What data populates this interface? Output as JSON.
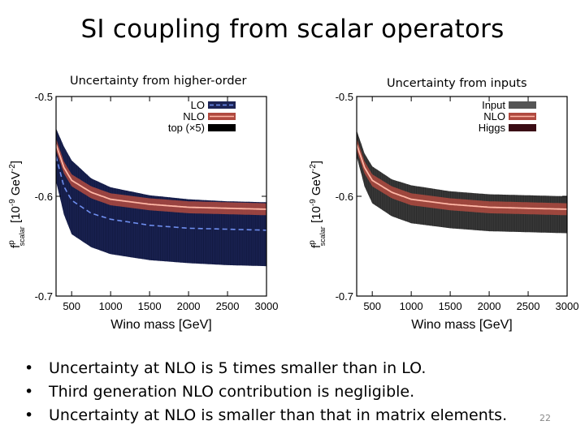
{
  "title": "SI coupling from scalar operators",
  "subtitles": {
    "left": "Uncertainty from higher-order",
    "right": "Uncertainty from inputs"
  },
  "bullets": [
    "Uncertainty at NLO is  5 times smaller than in LO.",
    "Third generation NLO contribution is negligible.",
    "Uncertainty at NLO is smaller than that in matrix elements."
  ],
  "page_number": "22",
  "colors": {
    "navy_band": "#1c2354",
    "lo_line": "#6f8ff0",
    "grey_band": "#3c3c3c",
    "nlo_band": "#b04a40",
    "nlo_line": "#ffb7a6",
    "higgs": "#3a0c14",
    "top": "#000000"
  },
  "chart_data": [
    {
      "type": "area",
      "title": "Uncertainty from higher-order",
      "xlabel": "Wino mass [GeV]",
      "ylabel_main": "f",
      "ylabel_super": "p",
      "ylabel_sub": "scalar",
      "ylabel_units": "[10",
      "ylabel_units_exp": "-9",
      "ylabel_units_tail": " GeV",
      "ylabel_units_exp2": "-2",
      "ylabel_units_close": "]",
      "xlim": [
        300,
        3000
      ],
      "ylim": [
        -0.7,
        -0.5
      ],
      "xticks": [
        500,
        1000,
        1500,
        2000,
        2500,
        3000
      ],
      "yticks": [
        -0.5,
        -0.6,
        -0.7
      ],
      "ytick_labels": [
        "-0.5",
        "-0.6",
        "-0.7"
      ],
      "legend": [
        {
          "label": "LO",
          "style": "lo"
        },
        {
          "label": "NLO",
          "style": "nlo"
        },
        {
          "label": "top (×5)",
          "style": "top"
        }
      ],
      "series": [
        {
          "name": "LO band",
          "x": [
            300,
            400,
            500,
            750,
            1000,
            1500,
            2000,
            2500,
            3000
          ],
          "lower": [
            -0.585,
            -0.618,
            -0.638,
            -0.651,
            -0.658,
            -0.664,
            -0.667,
            -0.669,
            -0.67
          ],
          "upper": [
            -0.532,
            -0.55,
            -0.564,
            -0.582,
            -0.591,
            -0.599,
            -0.603,
            -0.605,
            -0.606
          ]
        },
        {
          "name": "LO central",
          "x": [
            300,
            400,
            500,
            750,
            1000,
            1500,
            2000,
            2500,
            3000
          ],
          "y": [
            -0.56,
            -0.59,
            -0.604,
            -0.617,
            -0.623,
            -0.629,
            -0.632,
            -0.633,
            -0.634
          ]
        },
        {
          "name": "NLO band",
          "x": [
            300,
            400,
            500,
            750,
            1000,
            1500,
            2000,
            2500,
            3000
          ],
          "lower": [
            -0.554,
            -0.577,
            -0.59,
            -0.602,
            -0.609,
            -0.614,
            -0.617,
            -0.618,
            -0.619
          ],
          "upper": [
            -0.542,
            -0.565,
            -0.578,
            -0.59,
            -0.597,
            -0.602,
            -0.605,
            -0.606,
            -0.607
          ]
        },
        {
          "name": "NLO central",
          "x": [
            300,
            400,
            500,
            750,
            1000,
            1500,
            2000,
            2500,
            3000
          ],
          "y": [
            -0.548,
            -0.571,
            -0.584,
            -0.596,
            -0.603,
            -0.608,
            -0.611,
            -0.612,
            -0.613
          ]
        }
      ]
    },
    {
      "type": "area",
      "title": "Uncertainty from inputs",
      "xlabel": "Wino mass [GeV]",
      "ylabel_main": "f",
      "ylabel_super": "p",
      "ylabel_sub": "scalar",
      "ylabel_units": "[10",
      "ylabel_units_exp": "-9",
      "ylabel_units_tail": " GeV",
      "ylabel_units_exp2": "-2",
      "ylabel_units_close": "]",
      "xlim": [
        300,
        3000
      ],
      "ylim": [
        -0.7,
        -0.5
      ],
      "xticks": [
        500,
        1000,
        1500,
        2000,
        2500,
        3000
      ],
      "yticks": [
        -0.5,
        -0.6,
        -0.7
      ],
      "ytick_labels": [
        "-0.5",
        "-0.6",
        "-0.7"
      ],
      "legend": [
        {
          "label": "Input",
          "style": "input"
        },
        {
          "label": "NLO",
          "style": "nlo"
        },
        {
          "label": "Higgs",
          "style": "higgs"
        }
      ],
      "series": [
        {
          "name": "Input band",
          "x": [
            300,
            400,
            500,
            750,
            1000,
            1500,
            2000,
            2500,
            3000
          ],
          "lower": [
            -0.56,
            -0.59,
            -0.607,
            -0.62,
            -0.627,
            -0.632,
            -0.635,
            -0.636,
            -0.637
          ],
          "upper": [
            -0.534,
            -0.557,
            -0.57,
            -0.583,
            -0.589,
            -0.595,
            -0.598,
            -0.599,
            -0.6
          ]
        },
        {
          "name": "NLO band",
          "x": [
            300,
            400,
            500,
            750,
            1000,
            1500,
            2000,
            2500,
            3000
          ],
          "lower": [
            -0.554,
            -0.577,
            -0.59,
            -0.602,
            -0.609,
            -0.614,
            -0.617,
            -0.618,
            -0.619
          ],
          "upper": [
            -0.542,
            -0.565,
            -0.578,
            -0.59,
            -0.597,
            -0.602,
            -0.605,
            -0.606,
            -0.607
          ]
        },
        {
          "name": "NLO central",
          "x": [
            300,
            400,
            500,
            750,
            1000,
            1500,
            2000,
            2500,
            3000
          ],
          "y": [
            -0.548,
            -0.571,
            -0.584,
            -0.596,
            -0.603,
            -0.608,
            -0.611,
            -0.612,
            -0.613
          ]
        }
      ]
    }
  ]
}
